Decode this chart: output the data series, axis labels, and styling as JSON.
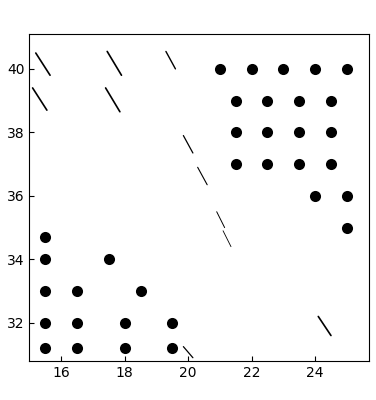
{
  "xlim": [
    15.0,
    25.7
  ],
  "ylim": [
    30.8,
    41.1
  ],
  "xticks": [
    16,
    18,
    20,
    22,
    24
  ],
  "yticks": [
    32,
    34,
    36,
    38,
    40
  ],
  "background_color": "#ffffff",
  "dot_color": "black",
  "line_color": "black",
  "dot_markersize": 8,
  "dots": [
    [
      21.0,
      40.0
    ],
    [
      22.0,
      40.0
    ],
    [
      23.0,
      40.0
    ],
    [
      24.0,
      40.0
    ],
    [
      25.0,
      40.0
    ],
    [
      21.5,
      39.0
    ],
    [
      22.5,
      39.0
    ],
    [
      23.5,
      39.0
    ],
    [
      24.5,
      39.0
    ],
    [
      21.5,
      38.0
    ],
    [
      22.5,
      38.0
    ],
    [
      23.5,
      38.0
    ],
    [
      24.5,
      38.0
    ],
    [
      21.5,
      37.0
    ],
    [
      22.5,
      37.0
    ],
    [
      23.5,
      37.0
    ],
    [
      24.5,
      37.0
    ],
    [
      24.0,
      36.0
    ],
    [
      25.0,
      36.0
    ],
    [
      25.0,
      35.0
    ],
    [
      15.5,
      34.7
    ],
    [
      15.5,
      34.0
    ],
    [
      17.5,
      34.0
    ],
    [
      15.5,
      33.0
    ],
    [
      16.5,
      33.0
    ],
    [
      18.5,
      33.0
    ],
    [
      15.5,
      32.0
    ],
    [
      16.5,
      32.0
    ],
    [
      18.0,
      32.0
    ],
    [
      19.5,
      32.0
    ],
    [
      15.5,
      31.2
    ],
    [
      16.5,
      31.2
    ],
    [
      18.0,
      31.2
    ],
    [
      19.5,
      31.2
    ]
  ],
  "lines": [
    {
      "x1": 15.2,
      "y1": 40.5,
      "x2": 15.65,
      "y2": 39.8,
      "lw": 1.2
    },
    {
      "x1": 15.1,
      "y1": 39.4,
      "x2": 15.55,
      "y2": 38.7,
      "lw": 1.2
    },
    {
      "x1": 17.45,
      "y1": 40.55,
      "x2": 17.9,
      "y2": 39.8,
      "lw": 1.2
    },
    {
      "x1": 17.4,
      "y1": 39.4,
      "x2": 17.85,
      "y2": 38.65,
      "lw": 1.2
    },
    {
      "x1": 19.3,
      "y1": 40.55,
      "x2": 19.6,
      "y2": 40.0,
      "lw": 1.0
    },
    {
      "x1": 19.85,
      "y1": 37.9,
      "x2": 20.15,
      "y2": 37.35,
      "lw": 0.9
    },
    {
      "x1": 20.3,
      "y1": 36.9,
      "x2": 20.6,
      "y2": 36.35,
      "lw": 0.8
    },
    {
      "x1": 20.9,
      "y1": 35.5,
      "x2": 21.15,
      "y2": 35.0,
      "lw": 0.7
    },
    {
      "x1": 21.1,
      "y1": 34.9,
      "x2": 21.35,
      "y2": 34.4,
      "lw": 0.6
    },
    {
      "x1": 24.1,
      "y1": 32.2,
      "x2": 24.5,
      "y2": 31.6,
      "lw": 1.2
    },
    {
      "x1": 19.85,
      "y1": 31.25,
      "x2": 20.15,
      "y2": 30.9,
      "lw": 0.9
    }
  ]
}
